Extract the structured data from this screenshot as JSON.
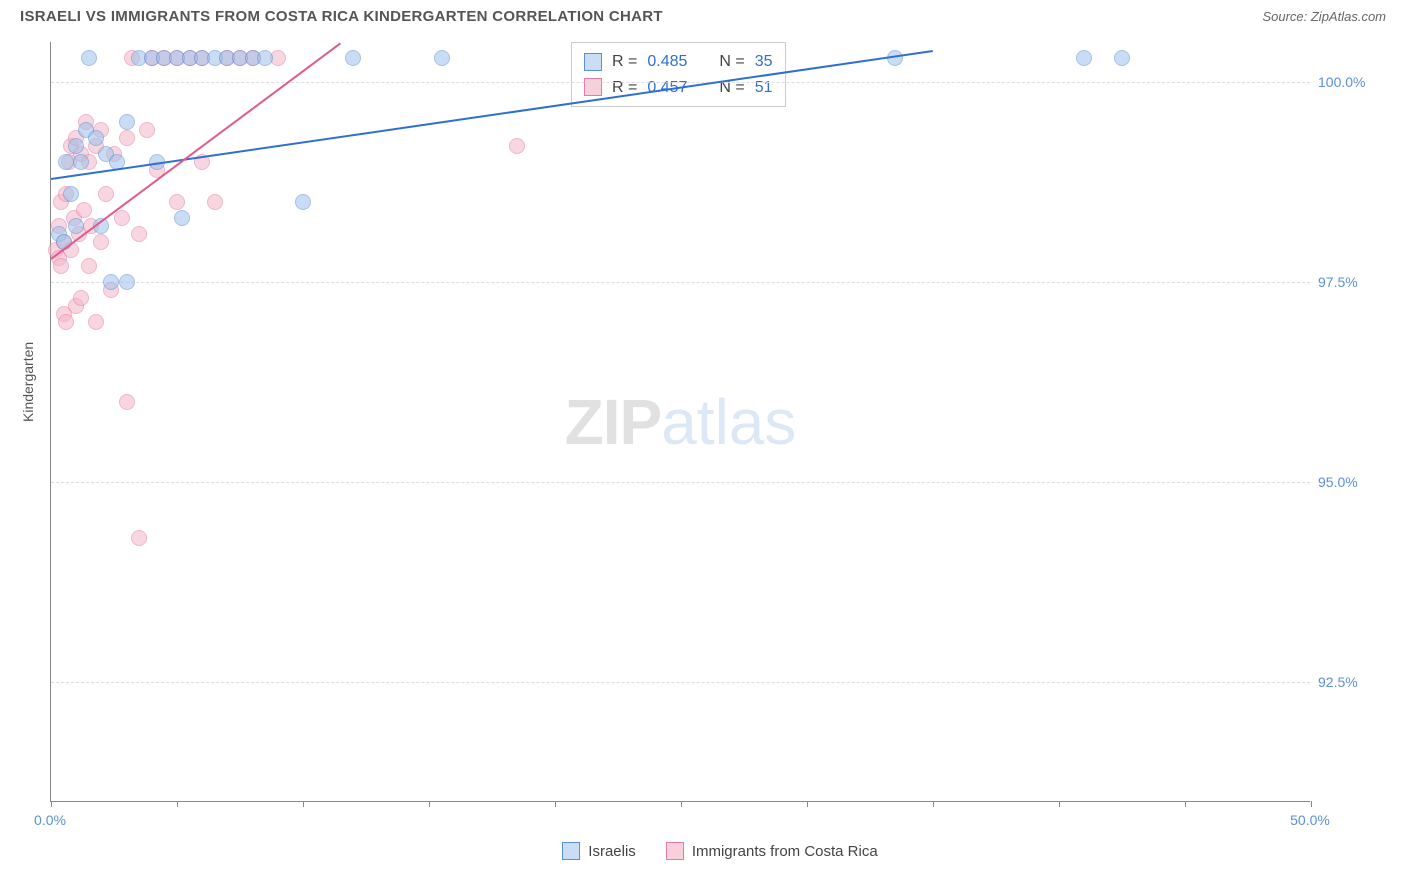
{
  "header": {
    "title": "ISRAELI VS IMMIGRANTS FROM COSTA RICA KINDERGARTEN CORRELATION CHART",
    "source": "Source: ZipAtlas.com"
  },
  "chart": {
    "type": "scatter",
    "ylabel": "Kindergarten",
    "xlim": [
      0,
      50
    ],
    "ylim": [
      91,
      100.5
    ],
    "xticks": [
      0,
      5,
      10,
      15,
      20,
      25,
      30,
      35,
      40,
      45,
      50
    ],
    "xtick_labels_shown": {
      "0": "0.0%",
      "50": "50.0%"
    },
    "yticks": [
      92.5,
      95.0,
      97.5,
      100.0
    ],
    "ytick_labels": [
      "92.5%",
      "95.0%",
      "97.5%",
      "100.0%"
    ],
    "background_color": "#ffffff",
    "grid_color": "#dddddd",
    "axis_color": "#888888",
    "label_color": "#5b8fd6",
    "marker_size": 16,
    "marker_opacity": 0.55,
    "series": {
      "a": {
        "name": "Israelis",
        "fill_color": "#9cc3ea",
        "stroke_color": "#5b8fd6",
        "trend_color": "#2f6fd0",
        "R": "0.485",
        "N": "35",
        "trend": {
          "x1": 0,
          "y1": 98.8,
          "x2": 35,
          "y2": 100.4
        },
        "points": [
          [
            0.3,
            98.1
          ],
          [
            0.5,
            98.0
          ],
          [
            0.6,
            99.0
          ],
          [
            0.8,
            98.6
          ],
          [
            1.0,
            98.2
          ],
          [
            1.0,
            99.2
          ],
          [
            1.2,
            99.0
          ],
          [
            1.4,
            99.4
          ],
          [
            1.5,
            100.3
          ],
          [
            1.8,
            99.3
          ],
          [
            2.0,
            98.2
          ],
          [
            2.2,
            99.1
          ],
          [
            2.4,
            97.5
          ],
          [
            2.6,
            99.0
          ],
          [
            3.0,
            97.5
          ],
          [
            3.0,
            99.5
          ],
          [
            3.5,
            100.3
          ],
          [
            4.0,
            100.3
          ],
          [
            4.2,
            99.0
          ],
          [
            4.5,
            100.3
          ],
          [
            5.0,
            100.3
          ],
          [
            5.2,
            98.3
          ],
          [
            5.5,
            100.3
          ],
          [
            6.0,
            100.3
          ],
          [
            6.5,
            100.3
          ],
          [
            7.0,
            100.3
          ],
          [
            7.5,
            100.3
          ],
          [
            8.0,
            100.3
          ],
          [
            8.5,
            100.3
          ],
          [
            10.0,
            98.5
          ],
          [
            12.0,
            100.3
          ],
          [
            15.5,
            100.3
          ],
          [
            33.5,
            100.3
          ],
          [
            41.0,
            100.3
          ],
          [
            42.5,
            100.3
          ]
        ]
      },
      "b": {
        "name": "Immigrants from Costa Rica",
        "fill_color": "#f4b6c8",
        "stroke_color": "#e77aa0",
        "trend_color": "#e05a8a",
        "R": "0.457",
        "N": "51",
        "trend": {
          "x1": 0,
          "y1": 97.8,
          "x2": 11.5,
          "y2": 100.5
        },
        "points": [
          [
            0.2,
            97.9
          ],
          [
            0.3,
            97.8
          ],
          [
            0.3,
            98.2
          ],
          [
            0.4,
            97.7
          ],
          [
            0.4,
            98.5
          ],
          [
            0.5,
            97.1
          ],
          [
            0.5,
            98.0
          ],
          [
            0.6,
            97.0
          ],
          [
            0.6,
            98.6
          ],
          [
            0.7,
            99.0
          ],
          [
            0.8,
            97.9
          ],
          [
            0.8,
            99.2
          ],
          [
            0.9,
            98.3
          ],
          [
            1.0,
            97.2
          ],
          [
            1.0,
            99.3
          ],
          [
            1.1,
            98.1
          ],
          [
            1.2,
            97.3
          ],
          [
            1.2,
            99.1
          ],
          [
            1.3,
            98.4
          ],
          [
            1.4,
            99.5
          ],
          [
            1.5,
            97.7
          ],
          [
            1.5,
            99.0
          ],
          [
            1.6,
            98.2
          ],
          [
            1.8,
            97.0
          ],
          [
            1.8,
            99.2
          ],
          [
            2.0,
            98.0
          ],
          [
            2.0,
            99.4
          ],
          [
            2.2,
            98.6
          ],
          [
            2.4,
            97.4
          ],
          [
            2.5,
            99.1
          ],
          [
            2.8,
            98.3
          ],
          [
            3.0,
            96.0
          ],
          [
            3.0,
            99.3
          ],
          [
            3.2,
            100.3
          ],
          [
            3.5,
            98.1
          ],
          [
            3.8,
            99.4
          ],
          [
            4.0,
            100.3
          ],
          [
            4.2,
            98.9
          ],
          [
            4.5,
            100.3
          ],
          [
            5.0,
            98.5
          ],
          [
            5.0,
            100.3
          ],
          [
            5.5,
            100.3
          ],
          [
            6.0,
            99.0
          ],
          [
            6.0,
            100.3
          ],
          [
            6.5,
            98.5
          ],
          [
            7.0,
            100.3
          ],
          [
            7.5,
            100.3
          ],
          [
            8.0,
            100.3
          ],
          [
            9.0,
            100.3
          ],
          [
            18.5,
            99.2
          ],
          [
            3.5,
            94.3
          ]
        ]
      }
    },
    "watermark": {
      "zip": "ZIP",
      "atlas": "atlas"
    }
  },
  "legend": {
    "a": "Israelis",
    "b": "Immigrants from Costa Rica"
  },
  "stats_labels": {
    "R": "R =",
    "N": "N ="
  }
}
